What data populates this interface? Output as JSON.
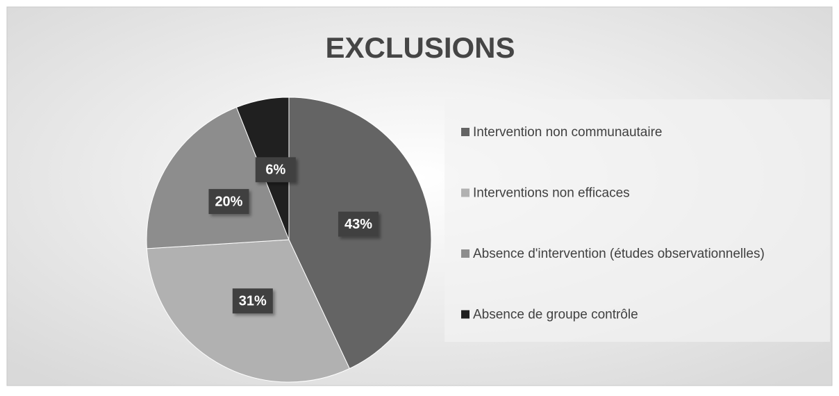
{
  "chart_data": {
    "type": "pie",
    "title": "EXCLUSIONS",
    "categories": [
      "Intervention non communautaire",
      "Interventions non efficaces",
      "Absence d'intervention (études observationnelles)",
      "Absence de groupe contrôle"
    ],
    "values": [
      43,
      31,
      20,
      6
    ],
    "value_labels": [
      "43%",
      "31%",
      "20%",
      "6%"
    ],
    "colors": [
      "#646464",
      "#b1b1b1",
      "#8d8d8d",
      "#202020"
    ],
    "legend": "right"
  }
}
